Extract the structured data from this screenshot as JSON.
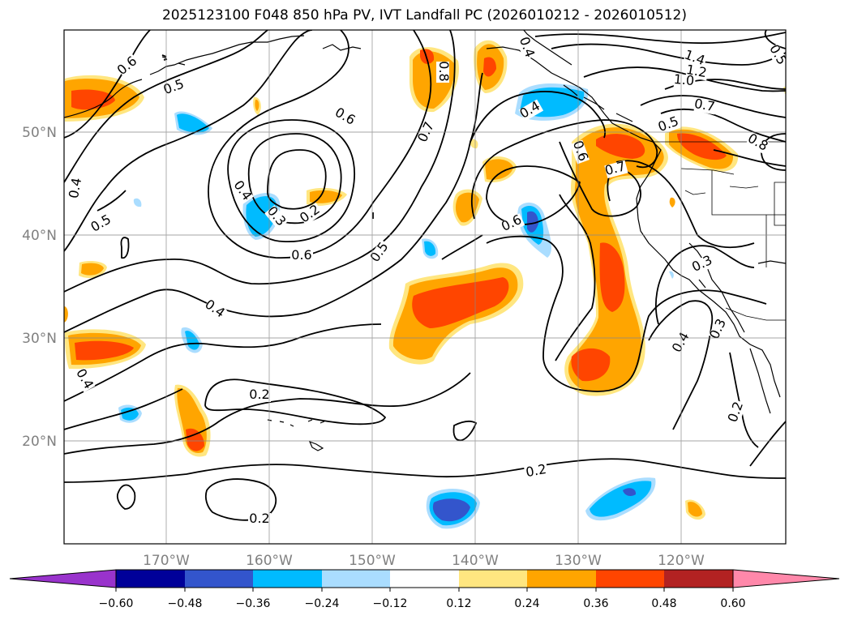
{
  "title": "2025123100 F048 850 hPa PV, IVT Landfall PC (2026010212 - 2026010512)",
  "lat_labels": [
    "50°N",
    "40°N",
    "30°N",
    "20°N"
  ],
  "lon_labels": [
    "170°W",
    "160°W",
    "150°W",
    "140°W",
    "130°W",
    "120°W"
  ],
  "colorbar": {
    "ticks": [
      "−0.60",
      "−0.48",
      "−0.36",
      "−0.24",
      "−0.12",
      "0.12",
      "0.24",
      "0.36",
      "0.48",
      "0.60"
    ],
    "colors": [
      "#9933cc",
      "#000099",
      "#3355cc",
      "#00bbff",
      "#aaddff",
      "#ffffff",
      "#ffe680",
      "#ffa500",
      "#ff4500",
      "#b22222",
      "#ff88aa"
    ]
  },
  "contour_labels": [
    "0.6",
    "0.5",
    "0.6",
    "0.4",
    "0.4",
    "0.3",
    "0.2",
    "0.5",
    "0.6",
    "0.5",
    "0.7",
    "0.8",
    "0.4",
    "0.6",
    "0.7",
    "0.6",
    "0.5",
    "1.4",
    "1.2",
    "1.0",
    "0.7",
    "0.5",
    "0.8",
    "0.3",
    "0.4",
    "0.3",
    "0.2",
    "0.4",
    "0.4",
    "0.2",
    "0.2",
    "0.2",
    "0.4"
  ],
  "colors": {
    "negative_light": "#aaddff",
    "negative_mid": "#00bbff",
    "negative_strong": "#3355cc",
    "positive_light": "#ffe680",
    "positive_mid": "#ffa500",
    "positive_strong": "#ff4500"
  }
}
